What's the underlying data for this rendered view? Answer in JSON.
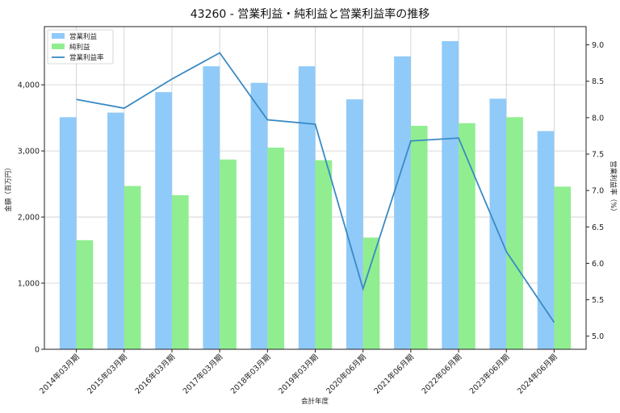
{
  "chart_data": {
    "type": "bar",
    "title": "43260 - 営業利益・純利益と営業利益率の推移",
    "xlabel": "会計年度",
    "ylabel": "金額（百万円）",
    "y2label": "営業利益率（%）",
    "categories": [
      "2014年03月期",
      "2015年03月期",
      "2016年03月期",
      "2017年03月期",
      "2018年03月期",
      "2019年03月期",
      "2020年06月期",
      "2021年06月期",
      "2022年06月期",
      "2023年06月期",
      "2024年06月期"
    ],
    "series": [
      {
        "name": "営業利益",
        "kind": "bar",
        "axis": "left",
        "color": "#90caf9",
        "values": [
          3510,
          3580,
          3890,
          4280,
          4030,
          4280,
          3780,
          4430,
          4660,
          3790,
          3300
        ]
      },
      {
        "name": "純利益",
        "kind": "bar",
        "axis": "left",
        "color": "#90ee90",
        "values": [
          1650,
          2470,
          2330,
          2870,
          3050,
          2860,
          1690,
          3380,
          3420,
          3510,
          2460
        ]
      },
      {
        "name": "営業利益率",
        "kind": "line",
        "axis": "right",
        "color": "#3a8ac4",
        "values": [
          8.25,
          8.13,
          8.53,
          8.89,
          7.97,
          7.91,
          5.65,
          7.68,
          7.72,
          6.16,
          5.19
        ]
      }
    ],
    "ylim": [
      0,
      4880
    ],
    "y2lim": [
      4.82,
      9.25
    ],
    "yticks": [
      0,
      1000,
      2000,
      3000,
      4000
    ],
    "ytick_labels": [
      "0",
      "1,000",
      "2,000",
      "3,000",
      "4,000"
    ],
    "y2ticks": [
      5.0,
      5.5,
      6.0,
      6.5,
      7.0,
      7.5,
      8.0,
      8.5,
      9.0
    ],
    "y2tick_labels": [
      "5.0",
      "5.5",
      "6.0",
      "6.5",
      "7.0",
      "7.5",
      "8.0",
      "8.5",
      "9.0"
    ],
    "grid": true,
    "legend_position": "top-left"
  }
}
